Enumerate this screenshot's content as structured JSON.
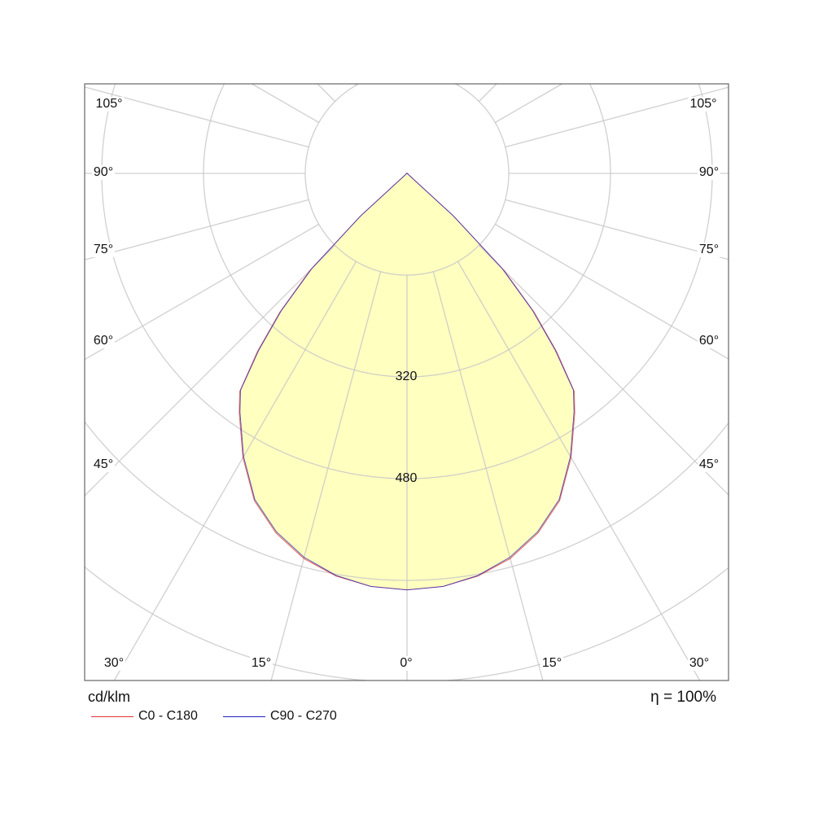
{
  "chart_data": {
    "type": "polar",
    "unit_label": "cd/klm",
    "efficiency_label": "η = 100%",
    "radial_tick_labels": [
      "320",
      "480"
    ],
    "radial_ticks": [
      160,
      320,
      480,
      640,
      800
    ],
    "angle_labels_left": [
      "105°",
      "90°",
      "75°",
      "60°",
      "45°",
      "30°",
      "15°"
    ],
    "angle_labels_right": [
      "105°",
      "90°",
      "75°",
      "60°",
      "45°",
      "30°",
      "15°"
    ],
    "angle_label_bottom": "0°",
    "angle_grid_step_deg": 15,
    "grid": true,
    "legend_position": "bottom-left",
    "fill_color": "#ffffc0",
    "gamma_deg": [
      0,
      5,
      10,
      15,
      20,
      25,
      30,
      35,
      37.5,
      40,
      42.5,
      45,
      47.5,
      50,
      60,
      70,
      80,
      90
    ],
    "series": [
      {
        "name": "C0 - C180",
        "color": "#e03030",
        "values": [
          655,
          652,
          643,
          627,
          602,
          568,
          516,
          460,
          432,
          366,
          296,
          216,
          100,
          2,
          1,
          1,
          1,
          1
        ]
      },
      {
        "name": "C90 - C270",
        "color": "#2020c0",
        "values": [
          655,
          652,
          642,
          625,
          600,
          566,
          514,
          458,
          430,
          362,
          292,
          212,
          98,
          2,
          1,
          1,
          1,
          1
        ]
      }
    ]
  }
}
